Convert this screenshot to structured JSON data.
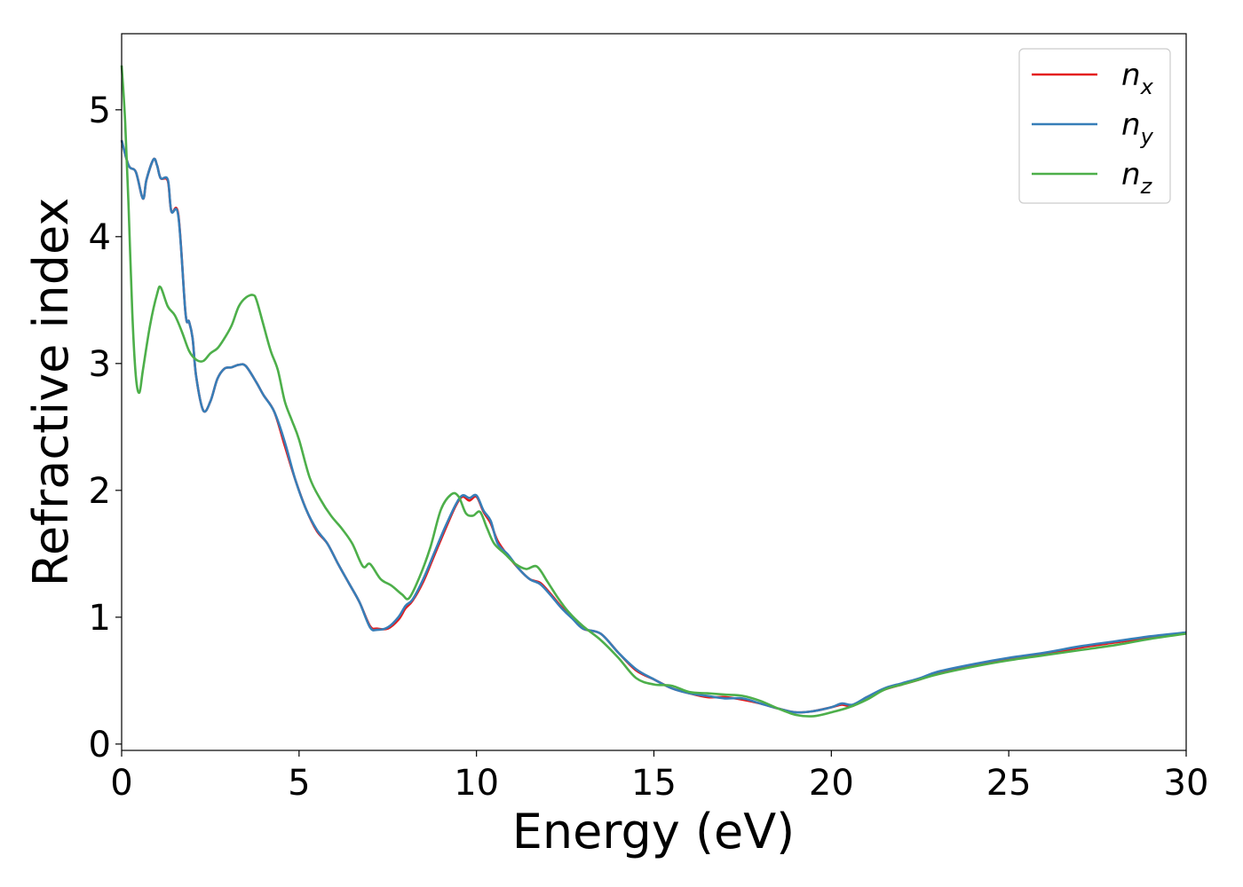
{
  "chart_data": {
    "type": "line",
    "xlabel": "Energy (eV)",
    "ylabel": "Refractive index",
    "xlim": [
      0,
      30
    ],
    "ylim": [
      -0.05,
      5.6
    ],
    "xticks": [
      0,
      5,
      10,
      15,
      20,
      25,
      30
    ],
    "yticks": [
      0,
      1,
      2,
      3,
      4,
      5
    ],
    "grid": false,
    "legend_position": "top-right",
    "series": [
      {
        "name": "n",
        "subscript": "x",
        "color": "#e41a1c",
        "x": [
          0,
          0.2,
          0.4,
          0.6,
          0.7,
          0.9,
          1.0,
          1.1,
          1.3,
          1.4,
          1.6,
          1.8,
          1.9,
          2.0,
          2.1,
          2.3,
          2.5,
          2.7,
          2.9,
          3.1,
          3.3,
          3.5,
          3.8,
          4.0,
          4.3,
          4.6,
          4.9,
          5.2,
          5.5,
          5.8,
          6.1,
          6.4,
          6.7,
          7.0,
          7.2,
          7.5,
          7.8,
          8.0,
          8.2,
          8.5,
          8.8,
          9.1,
          9.4,
          9.6,
          9.8,
          10.0,
          10.2,
          10.4,
          10.6,
          10.9,
          11.2,
          11.5,
          11.8,
          12.1,
          12.4,
          12.7,
          13.0,
          13.5,
          14.0,
          14.5,
          15.0,
          15.5,
          16.0,
          16.5,
          17.0,
          17.5,
          18.0,
          18.5,
          19.0,
          19.5,
          20.0,
          20.3,
          20.6,
          21.0,
          21.5,
          22.0,
          22.5,
          23.0,
          24.0,
          25.0,
          26.0,
          27.0,
          28.0,
          29.0,
          30.0
        ],
        "values": [
          4.76,
          4.56,
          4.51,
          4.3,
          4.45,
          4.61,
          4.56,
          4.46,
          4.44,
          4.2,
          4.17,
          3.4,
          3.33,
          3.2,
          2.9,
          2.63,
          2.7,
          2.88,
          2.96,
          2.97,
          2.99,
          2.98,
          2.85,
          2.75,
          2.62,
          2.35,
          2.08,
          1.85,
          1.68,
          1.58,
          1.42,
          1.27,
          1.12,
          0.93,
          0.91,
          0.91,
          0.98,
          1.07,
          1.13,
          1.28,
          1.48,
          1.68,
          1.87,
          1.95,
          1.92,
          1.95,
          1.83,
          1.74,
          1.6,
          1.48,
          1.38,
          1.3,
          1.27,
          1.18,
          1.08,
          1.0,
          0.91,
          0.87,
          0.72,
          0.58,
          0.51,
          0.44,
          0.4,
          0.37,
          0.37,
          0.35,
          0.32,
          0.28,
          0.25,
          0.26,
          0.29,
          0.31,
          0.3,
          0.37,
          0.43,
          0.47,
          0.51,
          0.56,
          0.62,
          0.67,
          0.71,
          0.76,
          0.8,
          0.84,
          0.88
        ]
      },
      {
        "name": "n",
        "subscript": "y",
        "color": "#377eb8",
        "x": [
          0,
          0.2,
          0.4,
          0.6,
          0.7,
          0.9,
          1.0,
          1.1,
          1.3,
          1.4,
          1.6,
          1.8,
          1.9,
          2.0,
          2.1,
          2.3,
          2.5,
          2.7,
          2.9,
          3.1,
          3.3,
          3.5,
          3.8,
          4.0,
          4.3,
          4.6,
          4.9,
          5.2,
          5.5,
          5.8,
          6.1,
          6.4,
          6.7,
          7.0,
          7.2,
          7.5,
          7.8,
          8.0,
          8.2,
          8.5,
          8.8,
          9.1,
          9.4,
          9.6,
          9.8,
          10.0,
          10.2,
          10.4,
          10.6,
          10.9,
          11.2,
          11.5,
          11.8,
          12.1,
          12.4,
          12.7,
          13.0,
          13.5,
          14.0,
          14.5,
          15.0,
          15.5,
          16.0,
          16.5,
          17.0,
          17.5,
          18.0,
          18.5,
          19.0,
          19.5,
          20.0,
          20.3,
          20.6,
          21.0,
          21.5,
          22.0,
          22.5,
          23.0,
          24.0,
          25.0,
          26.0,
          27.0,
          28.0,
          29.0,
          30.0
        ],
        "values": [
          4.76,
          4.56,
          4.51,
          4.3,
          4.45,
          4.61,
          4.56,
          4.46,
          4.45,
          4.2,
          4.16,
          3.4,
          3.33,
          3.2,
          2.9,
          2.63,
          2.7,
          2.88,
          2.96,
          2.97,
          2.99,
          2.98,
          2.85,
          2.75,
          2.62,
          2.38,
          2.08,
          1.85,
          1.69,
          1.58,
          1.42,
          1.27,
          1.12,
          0.92,
          0.9,
          0.92,
          1.0,
          1.09,
          1.14,
          1.3,
          1.5,
          1.7,
          1.88,
          1.96,
          1.94,
          1.96,
          1.84,
          1.76,
          1.58,
          1.49,
          1.38,
          1.3,
          1.26,
          1.17,
          1.07,
          0.99,
          0.91,
          0.87,
          0.72,
          0.59,
          0.51,
          0.44,
          0.4,
          0.38,
          0.36,
          0.36,
          0.32,
          0.28,
          0.25,
          0.26,
          0.29,
          0.32,
          0.31,
          0.37,
          0.44,
          0.48,
          0.52,
          0.57,
          0.63,
          0.68,
          0.72,
          0.77,
          0.81,
          0.85,
          0.88
        ]
      },
      {
        "name": "n",
        "subscript": "z",
        "color": "#4daf4a",
        "x": [
          0,
          0.1,
          0.2,
          0.3,
          0.4,
          0.5,
          0.6,
          0.8,
          1.0,
          1.1,
          1.3,
          1.5,
          1.7,
          1.9,
          2.1,
          2.3,
          2.5,
          2.7,
          2.9,
          3.1,
          3.3,
          3.5,
          3.7,
          3.8,
          4.0,
          4.2,
          4.4,
          4.6,
          4.8,
          5.0,
          5.3,
          5.6,
          5.9,
          6.2,
          6.5,
          6.8,
          7.0,
          7.3,
          7.6,
          7.9,
          8.1,
          8.4,
          8.7,
          9.0,
          9.3,
          9.5,
          9.7,
          9.9,
          10.1,
          10.3,
          10.5,
          10.8,
          11.1,
          11.4,
          11.7,
          12.0,
          12.3,
          12.6,
          13.0,
          13.5,
          14.0,
          14.5,
          15.0,
          15.5,
          16.0,
          16.5,
          17.0,
          17.5,
          18.0,
          18.5,
          19.0,
          19.5,
          20.0,
          20.5,
          21.0,
          21.5,
          22.0,
          22.5,
          23.0,
          24.0,
          25.0,
          26.0,
          27.0,
          28.0,
          29.0,
          30.0
        ],
        "values": [
          5.35,
          4.9,
          4.2,
          3.4,
          2.9,
          2.77,
          2.95,
          3.3,
          3.55,
          3.6,
          3.45,
          3.38,
          3.25,
          3.1,
          3.03,
          3.02,
          3.08,
          3.12,
          3.2,
          3.3,
          3.45,
          3.52,
          3.54,
          3.5,
          3.3,
          3.1,
          2.95,
          2.7,
          2.55,
          2.4,
          2.1,
          1.93,
          1.8,
          1.7,
          1.58,
          1.4,
          1.42,
          1.3,
          1.25,
          1.18,
          1.15,
          1.32,
          1.55,
          1.85,
          1.97,
          1.95,
          1.82,
          1.8,
          1.83,
          1.7,
          1.58,
          1.5,
          1.42,
          1.38,
          1.4,
          1.28,
          1.15,
          1.04,
          0.93,
          0.82,
          0.68,
          0.52,
          0.47,
          0.46,
          0.41,
          0.4,
          0.39,
          0.38,
          0.34,
          0.28,
          0.23,
          0.22,
          0.25,
          0.29,
          0.35,
          0.43,
          0.47,
          0.51,
          0.55,
          0.61,
          0.66,
          0.7,
          0.74,
          0.78,
          0.83,
          0.87
        ]
      }
    ]
  }
}
